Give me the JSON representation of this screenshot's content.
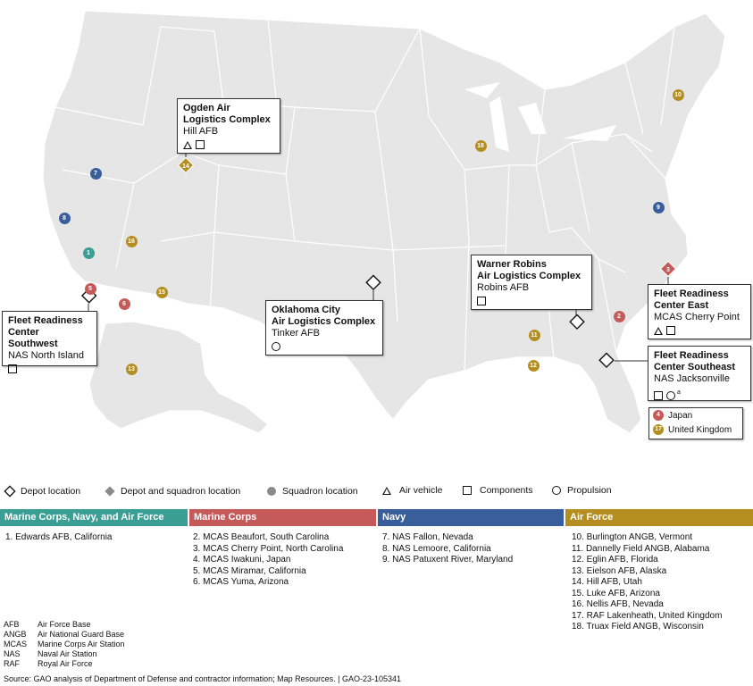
{
  "callouts": [
    {
      "id": "ogden",
      "title": "Ogden Air Logistics Complex",
      "subtitle": "Hill AFB"
    },
    {
      "id": "oklahoma",
      "title": "Oklahoma City Air Logistics Complex",
      "subtitle": "Tinker AFB"
    },
    {
      "id": "warner",
      "title": "Warner Robins Air Logistics Complex",
      "subtitle": "Robins AFB"
    },
    {
      "id": "southwest",
      "title": "Fleet Readiness Center Southwest",
      "subtitle": "NAS North Island"
    },
    {
      "id": "east",
      "title": "Fleet Readiness Center East",
      "subtitle": "MCAS Cherry Point"
    },
    {
      "id": "southeast",
      "title": "Fleet Readiness Center Southeast",
      "subtitle": "NAS Jacksonville",
      "note": "a"
    }
  ],
  "callout_title_lines": {
    "ogden": [
      "Ogden Air",
      "Logistics Complex"
    ],
    "oklahoma": [
      "Oklahoma City",
      "Air Logistics Complex"
    ],
    "warner": [
      "Warner Robins",
      "Air Logistics Complex"
    ],
    "southwest": [
      "Fleet Readiness",
      "Center Southwest"
    ],
    "east": [
      "Fleet Readiness",
      "Center East"
    ],
    "southeast": [
      "Fleet Readiness",
      "Center Southeast"
    ]
  },
  "markers": [
    {
      "n": "1",
      "color": "#3a9e94"
    },
    {
      "n": "2",
      "color": "#c45a5a"
    },
    {
      "n": "3",
      "color": "#c45a5a"
    },
    {
      "n": "5",
      "color": "#c45a5a"
    },
    {
      "n": "6",
      "color": "#c45a5a"
    },
    {
      "n": "7",
      "color": "#3a5e9c"
    },
    {
      "n": "8",
      "color": "#3a5e9c"
    },
    {
      "n": "9",
      "color": "#3a5e9c"
    },
    {
      "n": "10",
      "color": "#b58e22"
    },
    {
      "n": "11",
      "color": "#b58e22"
    },
    {
      "n": "12",
      "color": "#b58e22"
    },
    {
      "n": "13",
      "color": "#b58e22"
    },
    {
      "n": "14",
      "color": "#b58e22"
    },
    {
      "n": "15",
      "color": "#b58e22"
    },
    {
      "n": "16",
      "color": "#b58e22"
    },
    {
      "n": "18",
      "color": "#b58e22"
    }
  ],
  "inset_legend": {
    "japan": {
      "n": "4",
      "label": "Japan"
    },
    "uk": {
      "n": "17",
      "label": "United Kingdom"
    }
  },
  "legend": {
    "depot": "Depot location",
    "depot_squadron": "Depot and squadron location",
    "squadron": "Squadron location",
    "air_vehicle": "Air vehicle",
    "components": "Components",
    "propulsion": "Propulsion"
  },
  "categories": [
    {
      "name": "Marine Corps, Navy, and Air Force",
      "color": "#3a9e94",
      "items": [
        "1. Edwards AFB, California"
      ]
    },
    {
      "name": "Marine Corps",
      "color": "#c45a5a",
      "items": [
        "2. MCAS Beaufort, South Carolina",
        "3. MCAS Cherry Point, North Carolina",
        "4. MCAS Iwakuni, Japan",
        "5. MCAS Miramar, California",
        "6. MCAS Yuma, Arizona"
      ]
    },
    {
      "name": "Navy",
      "color": "#3a5e9c",
      "items": [
        "7. NAS Fallon, Nevada",
        "8. NAS Lemoore, California",
        "9. NAS Patuxent River, Maryland"
      ]
    },
    {
      "name": "Air Force",
      "color": "#b58e22",
      "items": [
        "10. Burlington ANGB, Vermont",
        "11. Dannelly Field ANGB, Alabama",
        "12. Eglin AFB, Florida",
        "13. Eielson AFB, Alaska",
        "14. Hill AFB, Utah",
        "15. Luke AFB, Arizona",
        "16. Nellis AFB, Nevada",
        "17. RAF Lakenheath, United Kingdom",
        "18. Truax Field ANGB, Wisconsin"
      ]
    }
  ],
  "abbreviations": [
    {
      "k": "AFB",
      "v": "Air Force Base"
    },
    {
      "k": "ANGB",
      "v": "Air National Guard Base"
    },
    {
      "k": "MCAS",
      "v": "Marine Corps Air Station"
    },
    {
      "k": "NAS",
      "v": "Naval Air Station"
    },
    {
      "k": "RAF",
      "v": "Royal Air Force"
    }
  ],
  "source": "Source: GAO analysis of Department of Defense and contractor information; Map Resources.  |  GAO-23-105341"
}
